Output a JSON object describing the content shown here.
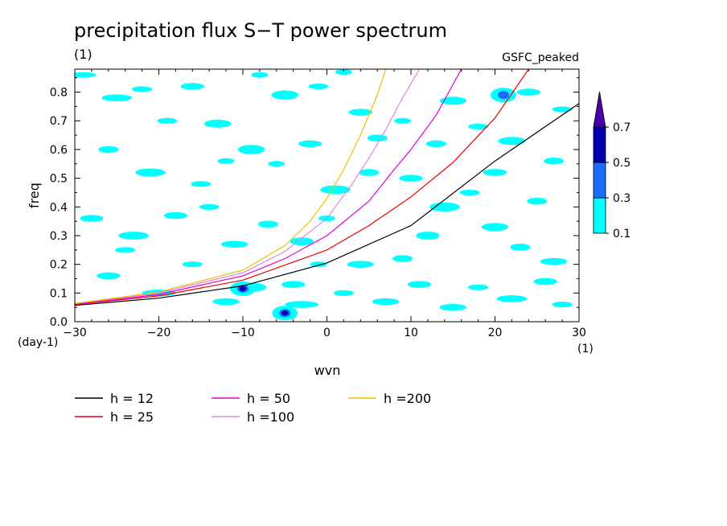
{
  "chart_data": {
    "type": "heatmap",
    "title": "precipitation flux S−T power spectrum",
    "subtitle": "(1)",
    "dataset_label": "GSFC_peaked",
    "xlabel": "wvn",
    "ylabel": "freq",
    "x_unit": "(1)",
    "y_unit": "(day-1)",
    "xlim": [
      -30,
      30
    ],
    "ylim": [
      0,
      0.88
    ],
    "x_ticks": [
      "−30",
      "−20",
      "−10",
      "0",
      "10",
      "20",
      "30"
    ],
    "x_tick_values": [
      -30,
      -20,
      -10,
      0,
      10,
      20,
      30
    ],
    "y_ticks": [
      "0.0",
      "0.1",
      "0.2",
      "0.3",
      "0.4",
      "0.5",
      "0.6",
      "0.7",
      "0.8"
    ],
    "y_tick_values": [
      0,
      0.1,
      0.2,
      0.3,
      0.4,
      0.5,
      0.6,
      0.7,
      0.8
    ],
    "colorbar": {
      "levels": [
        "0.1",
        "0.3",
        "0.5",
        "0.7"
      ],
      "level_values": [
        0.1,
        0.3,
        0.5,
        0.7
      ],
      "colors": [
        "#00ffff",
        "#1a6cff",
        "#0000b0",
        "#4a00a8"
      ]
    },
    "series": [
      {
        "name": "h = 12",
        "color": "#000000",
        "points": [
          [
            -30,
            0.057
          ],
          [
            -20,
            0.082
          ],
          [
            -10,
            0.125
          ],
          [
            0,
            0.205
          ],
          [
            10,
            0.335
          ],
          [
            20,
            0.56
          ],
          [
            30,
            0.76
          ]
        ]
      },
      {
        "name": "h = 25",
        "color": "#ee0000",
        "points": [
          [
            -30,
            0.06
          ],
          [
            -20,
            0.09
          ],
          [
            -10,
            0.145
          ],
          [
            0,
            0.25
          ],
          [
            5,
            0.335
          ],
          [
            10,
            0.435
          ],
          [
            15,
            0.555
          ],
          [
            20,
            0.71
          ],
          [
            24,
            0.88
          ]
        ]
      },
      {
        "name": "h = 50",
        "color": "#dd00dd",
        "points": [
          [
            -30,
            0.062
          ],
          [
            -20,
            0.095
          ],
          [
            -10,
            0.16
          ],
          [
            -5,
            0.22
          ],
          [
            0,
            0.3
          ],
          [
            5,
            0.42
          ],
          [
            8,
            0.53
          ],
          [
            10,
            0.6
          ],
          [
            13,
            0.72
          ],
          [
            16,
            0.88
          ]
        ]
      },
      {
        "name": "h =100",
        "color": "#dd88dd",
        "points": [
          [
            -30,
            0.063
          ],
          [
            -20,
            0.1
          ],
          [
            -10,
            0.17
          ],
          [
            -5,
            0.245
          ],
          [
            0,
            0.36
          ],
          [
            3,
            0.48
          ],
          [
            5,
            0.57
          ],
          [
            7,
            0.67
          ],
          [
            9,
            0.78
          ],
          [
            11,
            0.88
          ]
        ]
      },
      {
        "name": "h =200",
        "color": "#eec000",
        "points": [
          [
            -30,
            0.064
          ],
          [
            -20,
            0.103
          ],
          [
            -10,
            0.18
          ],
          [
            -5,
            0.265
          ],
          [
            -2,
            0.35
          ],
          [
            0,
            0.43
          ],
          [
            2,
            0.53
          ],
          [
            4,
            0.65
          ],
          [
            6,
            0.79
          ],
          [
            7,
            0.88
          ]
        ]
      }
    ],
    "blobs_level1": [
      [
        -29,
        0.86,
        1.5,
        0.01
      ],
      [
        -25,
        0.78,
        1.8,
        0.012
      ],
      [
        -22,
        0.81,
        1.2,
        0.01
      ],
      [
        -16,
        0.82,
        1.4,
        0.012
      ],
      [
        -13,
        0.69,
        1.6,
        0.014
      ],
      [
        -8,
        0.86,
        1.0,
        0.01
      ],
      [
        -5,
        0.79,
        1.6,
        0.016
      ],
      [
        -1,
        0.82,
        1.2,
        0.01
      ],
      [
        2,
        0.87,
        1.0,
        0.01
      ],
      [
        4,
        0.73,
        1.4,
        0.012
      ],
      [
        -26,
        0.6,
        1.2,
        0.012
      ],
      [
        -21,
        0.52,
        1.8,
        0.014
      ],
      [
        -15,
        0.48,
        1.2,
        0.01
      ],
      [
        -9,
        0.6,
        1.6,
        0.016
      ],
      [
        -6,
        0.55,
        1.0,
        0.01
      ],
      [
        -2,
        0.62,
        1.4,
        0.012
      ],
      [
        1,
        0.46,
        1.8,
        0.015
      ],
      [
        6,
        0.64,
        1.2,
        0.012
      ],
      [
        9,
        0.7,
        1.0,
        0.01
      ],
      [
        13,
        0.62,
        1.2,
        0.012
      ],
      [
        15,
        0.77,
        1.6,
        0.014
      ],
      [
        18,
        0.68,
        1.2,
        0.01
      ],
      [
        22,
        0.63,
        1.6,
        0.014
      ],
      [
        24,
        0.8,
        1.4,
        0.012
      ],
      [
        27,
        0.56,
        1.2,
        0.012
      ],
      [
        -28,
        0.36,
        1.4,
        0.012
      ],
      [
        -23,
        0.3,
        1.8,
        0.014
      ],
      [
        -18,
        0.37,
        1.4,
        0.012
      ],
      [
        -14,
        0.4,
        1.2,
        0.01
      ],
      [
        -11,
        0.27,
        1.6,
        0.012
      ],
      [
        -7,
        0.34,
        1.2,
        0.012
      ],
      [
        -3,
        0.28,
        1.4,
        0.014
      ],
      [
        0,
        0.36,
        1.0,
        0.01
      ],
      [
        4,
        0.2,
        1.6,
        0.012
      ],
      [
        9,
        0.22,
        1.2,
        0.012
      ],
      [
        12,
        0.3,
        1.4,
        0.014
      ],
      [
        14,
        0.4,
        1.8,
        0.016
      ],
      [
        20,
        0.33,
        1.6,
        0.014
      ],
      [
        23,
        0.26,
        1.2,
        0.012
      ],
      [
        27,
        0.21,
        1.6,
        0.012
      ],
      [
        -26,
        0.16,
        1.4,
        0.012
      ],
      [
        -20,
        0.1,
        2.0,
        0.012
      ],
      [
        -16,
        0.2,
        1.2,
        0.01
      ],
      [
        -12,
        0.07,
        1.6,
        0.012
      ],
      [
        -9,
        0.12,
        1.8,
        0.016
      ],
      [
        -4,
        0.13,
        1.4,
        0.012
      ],
      [
        -3,
        0.06,
        2.0,
        0.012
      ],
      [
        2,
        0.1,
        1.2,
        0.01
      ],
      [
        7,
        0.07,
        1.6,
        0.012
      ],
      [
        11,
        0.13,
        1.4,
        0.012
      ],
      [
        15,
        0.05,
        1.6,
        0.012
      ],
      [
        18,
        0.12,
        1.2,
        0.01
      ],
      [
        22,
        0.08,
        1.8,
        0.012
      ],
      [
        26,
        0.14,
        1.4,
        0.012
      ],
      [
        28,
        0.06,
        1.2,
        0.01
      ],
      [
        -24,
        0.25,
        1.2,
        0.01
      ],
      [
        -1,
        0.2,
        1.0,
        0.01
      ],
      [
        17,
        0.45,
        1.2,
        0.01
      ],
      [
        10,
        0.5,
        1.4,
        0.012
      ],
      [
        -19,
        0.7,
        1.2,
        0.01
      ],
      [
        25,
        0.42,
        1.2,
        0.012
      ],
      [
        5,
        0.52,
        1.2,
        0.012
      ],
      [
        -12,
        0.56,
        1.0,
        0.01
      ],
      [
        20,
        0.52,
        1.4,
        0.012
      ],
      [
        28,
        0.74,
        1.2,
        0.01
      ]
    ],
    "peaks": [
      {
        "x": -10,
        "y": 0.115,
        "level": 3
      },
      {
        "x": -5,
        "y": 0.03,
        "level": 3
      },
      {
        "x": 21,
        "y": 0.79,
        "level": 2
      }
    ]
  }
}
